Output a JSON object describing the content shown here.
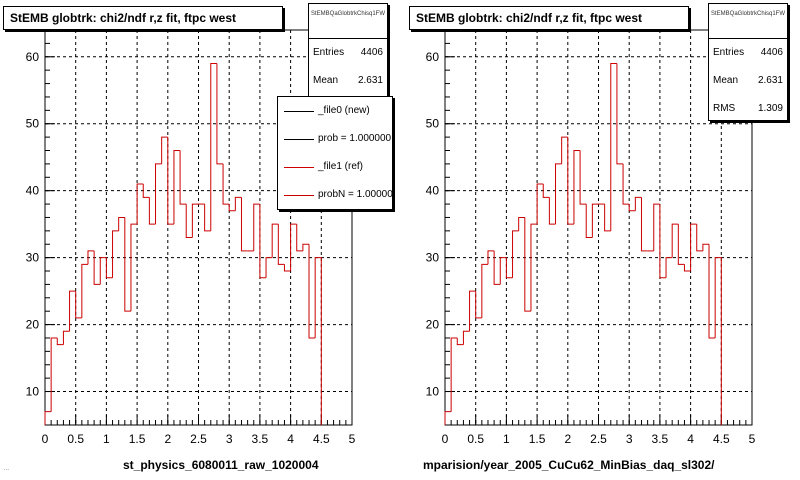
{
  "colors": {
    "histogram": "#cc0000",
    "frame": "#000000",
    "grid": "#000000",
    "background": "#ffffff"
  },
  "panels": [
    {
      "title": "StEMB globtrk: chi2/ndf r,z fit, ftpc west",
      "stats": {
        "name": "StEMBQaGlobtrkChisq1FW",
        "rows": [
          {
            "label": "Entries",
            "value": "4406"
          },
          {
            "label": "Mean",
            "value": "2.631"
          }
        ]
      },
      "legend": [
        {
          "label": "_file0 (new)",
          "color": "#000000"
        },
        {
          "label": "prob = 1.000000",
          "color": "#000000"
        },
        {
          "label": "_file1 (ref)",
          "color": "#cc0000"
        },
        {
          "label": "probN = 1.000000",
          "color": "#cc0000"
        }
      ],
      "footer": "st_physics_6080011_raw_1020004"
    },
    {
      "title": "StEMB globtrk: chi2/ndf r,z fit, ftpc west",
      "stats": {
        "name": "StEMBQaGlobtrkChisq1FW",
        "rows": [
          {
            "label": "Entries",
            "value": "4406"
          },
          {
            "label": "Mean",
            "value": "2.631"
          },
          {
            "label": "RMS",
            "value": "1.309"
          }
        ]
      },
      "legend": [],
      "footer": "mparision/year_2005_CuCu62_MinBias_daq_sl302/"
    }
  ],
  "bottom_note": "...",
  "chart_data": [
    {
      "type": "bar",
      "title": "StEMB globtrk: chi2/ndf r,z fit, ftpc west",
      "xlabel": "",
      "ylabel": "",
      "xlim": [
        0,
        5
      ],
      "ylim": [
        5,
        64
      ],
      "x_ticks": [
        0,
        0.5,
        1,
        1.5,
        2,
        2.5,
        3,
        3.5,
        4,
        4.5,
        5
      ],
      "y_ticks": [
        10,
        20,
        30,
        40,
        50,
        60
      ],
      "grid": true,
      "legend_position": "top-right",
      "bin_width": 0.1,
      "x": [
        0.0,
        0.1,
        0.2,
        0.3,
        0.4,
        0.5,
        0.6,
        0.7,
        0.8,
        0.9,
        1.0,
        1.1,
        1.2,
        1.3,
        1.4,
        1.5,
        1.6,
        1.7,
        1.8,
        1.9,
        2.0,
        2.1,
        2.2,
        2.3,
        2.4,
        2.5,
        2.6,
        2.7,
        2.8,
        2.9,
        3.0,
        3.1,
        3.2,
        3.3,
        3.4,
        3.5,
        3.6,
        3.7,
        3.8,
        3.9,
        4.0,
        4.1,
        4.2,
        4.3,
        4.4,
        4.5,
        4.6,
        4.7,
        4.8,
        4.9
      ],
      "series": [
        {
          "name": "_file1 (ref)",
          "values": [
            7,
            18,
            17,
            19,
            25,
            21,
            29,
            31,
            26,
            30,
            27,
            34,
            36,
            22,
            35,
            41,
            39,
            35,
            44,
            48,
            35,
            46,
            38,
            33,
            38,
            38,
            34,
            59,
            44,
            38,
            37,
            39,
            31,
            31,
            38,
            27,
            30,
            35,
            29,
            28,
            35,
            31,
            32,
            18,
            30,
            null,
            null,
            null,
            null,
            null
          ]
        }
      ]
    },
    {
      "type": "bar",
      "title": "StEMB globtrk: chi2/ndf r,z fit, ftpc west",
      "xlabel": "",
      "ylabel": "",
      "xlim": [
        0,
        5
      ],
      "ylim": [
        5,
        64
      ],
      "x_ticks": [
        0,
        0.5,
        1,
        1.5,
        2,
        2.5,
        3,
        3.5,
        4,
        4.5,
        5
      ],
      "y_ticks": [
        10,
        20,
        30,
        40,
        50,
        60
      ],
      "grid": true,
      "bin_width": 0.1,
      "x": [
        0.0,
        0.1,
        0.2,
        0.3,
        0.4,
        0.5,
        0.6,
        0.7,
        0.8,
        0.9,
        1.0,
        1.1,
        1.2,
        1.3,
        1.4,
        1.5,
        1.6,
        1.7,
        1.8,
        1.9,
        2.0,
        2.1,
        2.2,
        2.3,
        2.4,
        2.5,
        2.6,
        2.7,
        2.8,
        2.9,
        3.0,
        3.1,
        3.2,
        3.3,
        3.4,
        3.5,
        3.6,
        3.7,
        3.8,
        3.9,
        4.0,
        4.1,
        4.2,
        4.3,
        4.4,
        4.5,
        4.6,
        4.7,
        4.8,
        4.9
      ],
      "series": [
        {
          "name": "",
          "values": [
            7,
            18,
            17,
            19,
            25,
            21,
            29,
            31,
            26,
            30,
            27,
            34,
            36,
            22,
            35,
            41,
            39,
            35,
            44,
            48,
            35,
            46,
            38,
            33,
            38,
            38,
            34,
            59,
            44,
            38,
            37,
            39,
            31,
            31,
            38,
            27,
            30,
            35,
            29,
            28,
            35,
            31,
            32,
            18,
            30,
            null,
            null,
            null,
            null,
            null
          ]
        }
      ]
    }
  ]
}
